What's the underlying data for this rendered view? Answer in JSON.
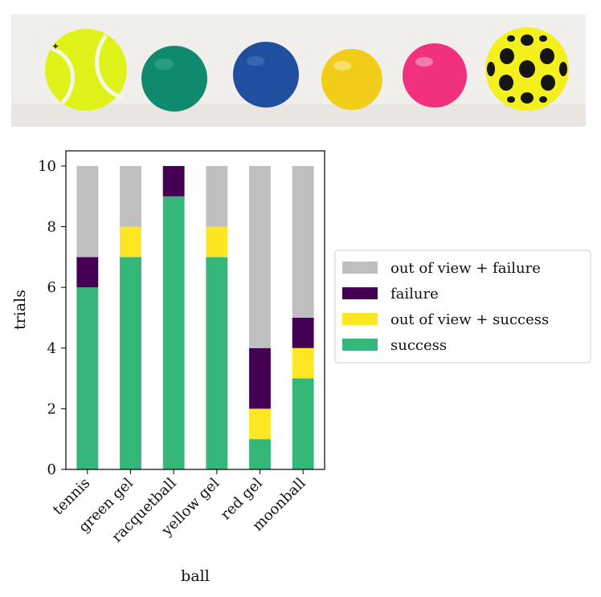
{
  "photo": {
    "balls": [
      {
        "icon": "tennis-ball-icon",
        "color": "#dff21a"
      },
      {
        "icon": "green-gel-ball-icon",
        "color": "#0f8a6f"
      },
      {
        "icon": "racquetball-icon",
        "color": "#1f4f9e"
      },
      {
        "icon": "yellow-gel-ball-icon",
        "color": "#f1cc18"
      },
      {
        "icon": "red-gel-ball-icon",
        "color": "#f2317e"
      },
      {
        "icon": "moonball-icon",
        "color": "#f3f01d"
      }
    ]
  },
  "chart_data": {
    "type": "bar",
    "stacked": true,
    "categories": [
      "tennis",
      "green gel",
      "racquetball",
      "yellow gel",
      "red gel",
      "moonball"
    ],
    "series": [
      {
        "name": "success",
        "color": "#35b779",
        "values": [
          6,
          7,
          9,
          7,
          1,
          3
        ]
      },
      {
        "name": "out of view + success",
        "color": "#fde725",
        "values": [
          0,
          1,
          0,
          1,
          1,
          1
        ]
      },
      {
        "name": "failure",
        "color": "#440154",
        "values": [
          1,
          0,
          1,
          0,
          2,
          1
        ]
      },
      {
        "name": "out of view + failure",
        "color": "#bfbfbf",
        "values": [
          3,
          2,
          0,
          2,
          6,
          5
        ]
      }
    ],
    "xlabel": "ball",
    "ylabel": "trials",
    "ylim": [
      0,
      10.5
    ],
    "yticks": [
      0,
      2,
      4,
      6,
      8,
      10
    ],
    "legend_placement": "right",
    "legend_order": [
      "out of view + failure",
      "failure",
      "out of view + success",
      "success"
    ],
    "grid": false
  }
}
